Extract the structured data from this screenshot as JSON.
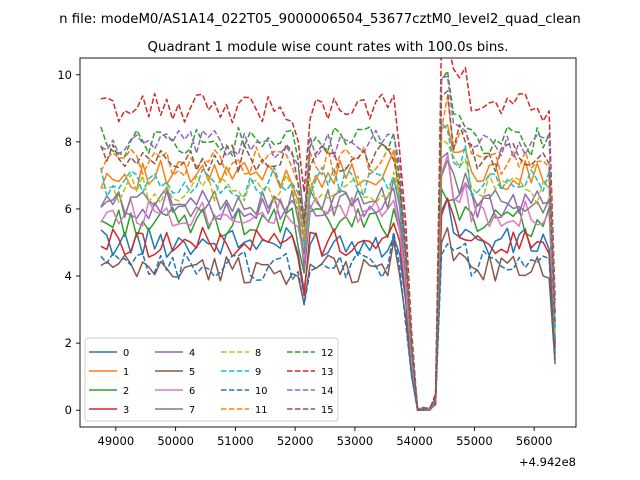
{
  "chart_data": {
    "type": "line",
    "suptitle": "n file: modeM0/AS1A14_022T05_9000006504_53677cztM0_level2_quad_clean",
    "title": "Quadrant 1 module wise count rates with 100.0s bins.",
    "xlabel": "",
    "ylabel": "",
    "x_offset_label": "+4.942e8",
    "xlim": [
      48400,
      56700
    ],
    "ylim": [
      -0.5,
      10.5
    ],
    "x_ticks": [
      49000,
      50000,
      51000,
      52000,
      53000,
      54000,
      55000,
      56000
    ],
    "x_tick_labels": [
      "49000",
      "50000",
      "51000",
      "52000",
      "53000",
      "54000",
      "55000",
      "56000"
    ],
    "y_ticks": [
      0,
      2,
      4,
      6,
      8,
      10
    ],
    "y_tick_labels": [
      "0",
      "2",
      "4",
      "6",
      "8",
      "10"
    ],
    "grid": false,
    "legend_placement": "lower-left",
    "x": {
      "start": 48750,
      "step": 100,
      "count": 77
    },
    "series": [
      {
        "name": "0",
        "color": "#1f77b4",
        "dash": "solid",
        "base": 5.0
      },
      {
        "name": "1",
        "color": "#ff7f0e",
        "dash": "solid",
        "base": 7.0
      },
      {
        "name": "2",
        "color": "#2ca02c",
        "dash": "solid",
        "base": 5.6
      },
      {
        "name": "3",
        "color": "#d62728",
        "dash": "solid",
        "base": 5.0
      },
      {
        "name": "4",
        "color": "#9467bd",
        "dash": "solid",
        "base": 6.1
      },
      {
        "name": "5",
        "color": "#8c564b",
        "dash": "solid",
        "base": 4.2
      },
      {
        "name": "6",
        "color": "#e377c2",
        "dash": "solid",
        "base": 5.9
      },
      {
        "name": "7",
        "color": "#7f7f7f",
        "dash": "solid",
        "base": 6.2
      },
      {
        "name": "8",
        "color": "#bcbd22",
        "dash": "dashed",
        "base": 6.6
      },
      {
        "name": "9",
        "color": "#17becf",
        "dash": "dashed",
        "base": 6.8
      },
      {
        "name": "10",
        "color": "#1f77b4",
        "dash": "dashed",
        "base": 4.3
      },
      {
        "name": "11",
        "color": "#ff7f0e",
        "dash": "dashed",
        "base": 7.4
      },
      {
        "name": "12",
        "color": "#2ca02c",
        "dash": "dashed",
        "base": 8.0
      },
      {
        "name": "13",
        "color": "#d62728",
        "dash": "dashed",
        "base": 9.0
      },
      {
        "name": "14",
        "color": "#9467bd",
        "dash": "dashed",
        "base": 7.9
      },
      {
        "name": "15",
        "color": "#8c564b",
        "dash": "dashed",
        "base": 7.5
      }
    ]
  }
}
